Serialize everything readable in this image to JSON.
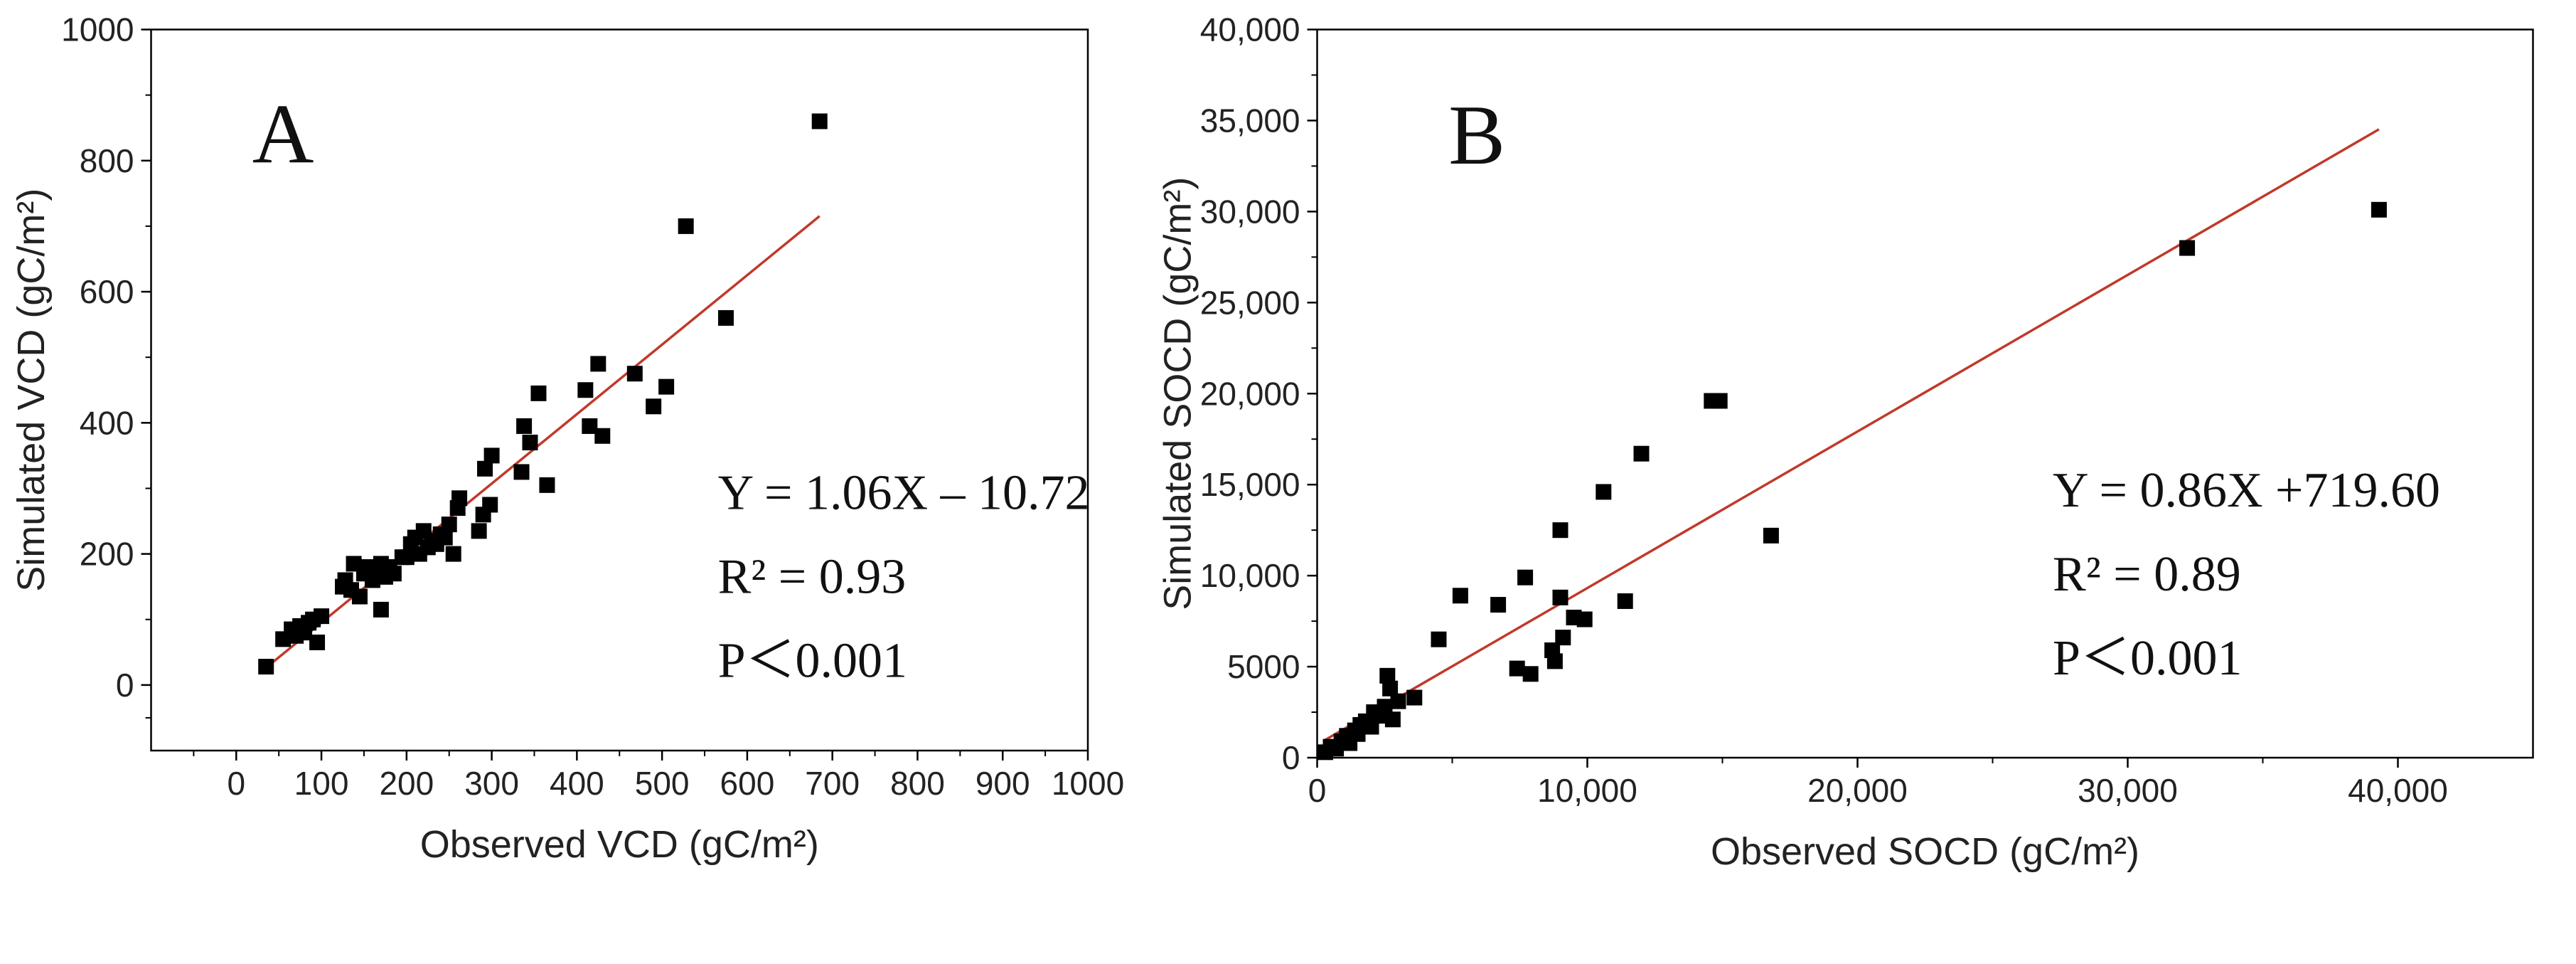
{
  "chart_data": [
    {
      "type": "scatter",
      "panel_label": "A",
      "xlabel": "Observed VCD (gC/m²)",
      "ylabel": "Simulated VCD (gC/m²)",
      "xlim": [
        -100,
        1000
      ],
      "ylim": [
        -100,
        1000
      ],
      "x_ticks": [
        0,
        100,
        200,
        300,
        400,
        500,
        600,
        700,
        800,
        900,
        1000
      ],
      "x_tick_labels": [
        "0",
        "100",
        "200",
        "300",
        "400",
        "500",
        "600",
        "700",
        "800",
        "900",
        "1000"
      ],
      "y_ticks": [
        0,
        200,
        400,
        600,
        800,
        1000
      ],
      "y_tick_labels": [
        "0",
        "200",
        "400",
        "600",
        "800",
        "1000"
      ],
      "annotations": [
        "Y = 1.06X – 10.72",
        "R² = 0.93",
        "P＜0.001"
      ],
      "fit_line": {
        "slope": 1.06,
        "intercept": -10.72,
        "x_range": [
          35,
          685
        ],
        "color": "#c0392b"
      },
      "series": [
        {
          "name": "VCD",
          "color": "#000000",
          "points": [
            [
              35,
              28
            ],
            [
              55,
              70
            ],
            [
              65,
              85
            ],
            [
              70,
              75
            ],
            [
              75,
              90
            ],
            [
              80,
              80
            ],
            [
              85,
              95
            ],
            [
              90,
              100
            ],
            [
              95,
              65
            ],
            [
              100,
              105
            ],
            [
              125,
              150
            ],
            [
              128,
              160
            ],
            [
              135,
              145
            ],
            [
              138,
              185
            ],
            [
              145,
              135
            ],
            [
              150,
              170
            ],
            [
              155,
              180
            ],
            [
              160,
              160
            ],
            [
              165,
              175
            ],
            [
              170,
              115
            ],
            [
              170,
              185
            ],
            [
              175,
              165
            ],
            [
              180,
              180
            ],
            [
              185,
              170
            ],
            [
              195,
              195
            ],
            [
              200,
              195
            ],
            [
              205,
              215
            ],
            [
              210,
              225
            ],
            [
              215,
              200
            ],
            [
              220,
              235
            ],
            [
              225,
              210
            ],
            [
              230,
              220
            ],
            [
              235,
              215
            ],
            [
              240,
              230
            ],
            [
              245,
              225
            ],
            [
              250,
              245
            ],
            [
              255,
              200
            ],
            [
              260,
              270
            ],
            [
              262,
              285
            ],
            [
              285,
              235
            ],
            [
              290,
              260
            ],
            [
              292,
              330
            ],
            [
              298,
              275
            ],
            [
              300,
              350
            ],
            [
              335,
              325
            ],
            [
              338,
              395
            ],
            [
              345,
              370
            ],
            [
              355,
              445
            ],
            [
              365,
              305
            ],
            [
              410,
              450
            ],
            [
              415,
              395
            ],
            [
              425,
              490
            ],
            [
              430,
              380
            ],
            [
              468,
              475
            ],
            [
              490,
              425
            ],
            [
              505,
              455
            ],
            [
              528,
              700
            ],
            [
              575,
              560
            ],
            [
              685,
              860
            ]
          ]
        }
      ]
    },
    {
      "type": "scatter",
      "panel_label": "B",
      "xlabel": "Observed SOCD (gC/m²)",
      "ylabel": "Simulated SOCD (gC/m²)",
      "xlim": [
        0,
        45000
      ],
      "ylim": [
        0,
        40000
      ],
      "x_ticks": [
        0,
        10000,
        20000,
        30000,
        40000
      ],
      "x_tick_labels": [
        "0",
        "10,000",
        "20,000",
        "30,000",
        "40,000"
      ],
      "y_ticks": [
        0,
        5000,
        10000,
        15000,
        20000,
        25000,
        30000,
        35000,
        40000
      ],
      "y_tick_labels": [
        "0",
        "5000",
        "10,000",
        "15,000",
        "20,000",
        "25,000",
        "30,000",
        "35,000",
        "40,000"
      ],
      "annotations": [
        "Y = 0.86X +719.60",
        "R² = 0.89",
        "P＜0.001"
      ],
      "fit_line": {
        "slope": 0.86,
        "intercept": 719.6,
        "x_range": [
          300,
          39300
        ],
        "color": "#c0392b"
      },
      "series": [
        {
          "name": "SOCD",
          "color": "#000000",
          "points": [
            [
              300,
              300
            ],
            [
              500,
              600
            ],
            [
              700,
              500
            ],
            [
              900,
              900
            ],
            [
              1100,
              1200
            ],
            [
              1200,
              800
            ],
            [
              1400,
              1500
            ],
            [
              1500,
              1300
            ],
            [
              1600,
              1800
            ],
            [
              1800,
              2000
            ],
            [
              2000,
              1700
            ],
            [
              2100,
              2500
            ],
            [
              2300,
              2300
            ],
            [
              2500,
              2800
            ],
            [
              2600,
              4500
            ],
            [
              2700,
              3800
            ],
            [
              2800,
              2100
            ],
            [
              3000,
              3100
            ],
            [
              3600,
              3300
            ],
            [
              4500,
              6500
            ],
            [
              5300,
              8900
            ],
            [
              6700,
              8400
            ],
            [
              7400,
              4900
            ],
            [
              7700,
              9900
            ],
            [
              7900,
              4600
            ],
            [
              8700,
              5900
            ],
            [
              8800,
              5300
            ],
            [
              9000,
              8800
            ],
            [
              9000,
              12500
            ],
            [
              9100,
              6600
            ],
            [
              9500,
              7700
            ],
            [
              9900,
              7600
            ],
            [
              10600,
              14600
            ],
            [
              11400,
              8600
            ],
            [
              12000,
              16700
            ],
            [
              14600,
              19600
            ],
            [
              14900,
              19600
            ],
            [
              16800,
              12200
            ],
            [
              32200,
              28000
            ],
            [
              39300,
              30100
            ]
          ]
        }
      ]
    }
  ]
}
